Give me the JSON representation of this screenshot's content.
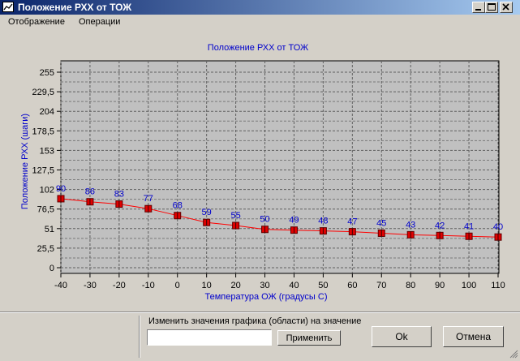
{
  "window": {
    "title": "Положение РХХ от ТОЖ"
  },
  "menu": {
    "items": [
      "Отображение",
      "Операции"
    ]
  },
  "chart_data": {
    "type": "line",
    "title": "Положение РХХ от ТОЖ",
    "xlabel": "Температура ОЖ (градусы С)",
    "ylabel": "Положение РХХ (шаги)",
    "x": [
      -40,
      -30,
      -20,
      -10,
      0,
      10,
      20,
      30,
      40,
      50,
      60,
      70,
      80,
      90,
      100,
      110
    ],
    "values": [
      90,
      86,
      83,
      77,
      68,
      59,
      55,
      50,
      49,
      48,
      47,
      45,
      43,
      42,
      41,
      40
    ],
    "point_labels": [
      "90",
      "86",
      "83",
      "77",
      "68",
      "59",
      "55",
      "50",
      "49",
      "48",
      "47",
      "45",
      "43",
      "42",
      "41",
      "40"
    ],
    "x_ticks": [
      "-40",
      "-30",
      "-20",
      "-10",
      "0",
      "10",
      "20",
      "30",
      "40",
      "50",
      "60",
      "70",
      "80",
      "90",
      "100",
      "110"
    ],
    "y_ticks": [
      "0",
      "25,5",
      "51",
      "76,5",
      "102",
      "127,5",
      "153",
      "178,5",
      "204",
      "229,5",
      "255"
    ],
    "y_tick_values": [
      0,
      25.5,
      51,
      76.5,
      102,
      127.5,
      153,
      178.5,
      204,
      229.5,
      255
    ],
    "xlim": [
      -40,
      110
    ],
    "ylim": [
      0,
      255
    ],
    "grid": true,
    "colors": {
      "line": "#ff0000",
      "marker": "#e00000",
      "labels": "#0000cc",
      "plot_bg": "#c0c0c0"
    }
  },
  "panel": {
    "change_label": "Изменить значения графика (области) на значение",
    "input_value": "",
    "apply_label": "Применить",
    "ok_label": "Ok",
    "cancel_label": "Отмена"
  }
}
